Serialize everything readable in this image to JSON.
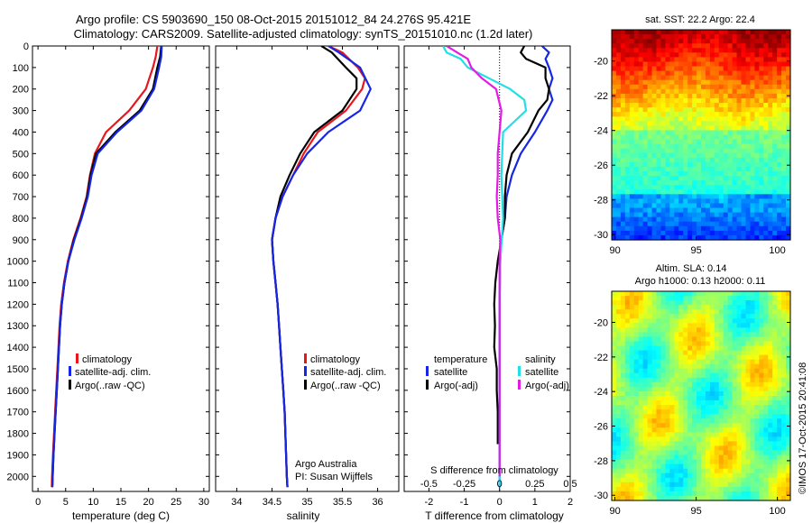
{
  "header": {
    "line1": "Argo profile: CS 5903690_150 08-Oct-2015 20151012_84 24.276S 95.421E",
    "line2": "Climatology: CARS2009. Satellite-adjusted climatology: synTS_20151010.nc (1.2d later)"
  },
  "chart_data": [
    {
      "type": "line",
      "panel": "temperature",
      "xlabel": "temperature (deg C)",
      "xlim": [
        -1,
        31
      ],
      "ylim": [
        2070,
        0
      ],
      "xticks": [
        0,
        5,
        10,
        15,
        20,
        25,
        30
      ],
      "yticks": [
        0,
        100,
        200,
        300,
        400,
        500,
        600,
        700,
        800,
        900,
        1000,
        1100,
        1200,
        1300,
        1400,
        1500,
        1600,
        1700,
        1800,
        1900,
        2000
      ],
      "legend": [
        "climatology",
        "satellite-adj. clim.",
        "Argo(..raw -QC)"
      ],
      "series": [
        {
          "name": "climatology",
          "color": "#e8171b",
          "points": [
            [
              21.6,
              0
            ],
            [
              21.3,
              50
            ],
            [
              20.8,
              100
            ],
            [
              19.5,
              200
            ],
            [
              16.5,
              300
            ],
            [
              12.3,
              400
            ],
            [
              10.3,
              500
            ],
            [
              9.4,
              600
            ],
            [
              8.8,
              700
            ],
            [
              7.7,
              800
            ],
            [
              6.4,
              900
            ],
            [
              5.4,
              1000
            ],
            [
              4.7,
              1100
            ],
            [
              4.2,
              1200
            ],
            [
              3.9,
              1300
            ],
            [
              3.7,
              1400
            ],
            [
              3.5,
              1500
            ],
            [
              3.3,
              1600
            ],
            [
              3.1,
              1700
            ],
            [
              2.9,
              1800
            ],
            [
              2.7,
              1900
            ],
            [
              2.55,
              2000
            ],
            [
              2.5,
              2050
            ]
          ]
        },
        {
          "name": "Argo(..raw -QC)",
          "color": "#000000",
          "points": [
            [
              22.3,
              0
            ],
            [
              22.1,
              50
            ],
            [
              21.6,
              100
            ],
            [
              20.8,
              200
            ],
            [
              18.4,
              300
            ],
            [
              14.0,
              400
            ],
            [
              10.5,
              500
            ],
            [
              9.5,
              600
            ],
            [
              8.9,
              700
            ],
            [
              7.8,
              800
            ],
            [
              6.5,
              900
            ],
            [
              5.5,
              1000
            ],
            [
              4.8,
              1100
            ],
            [
              4.3,
              1200
            ],
            [
              4.0,
              1300
            ],
            [
              3.8,
              1400
            ],
            [
              3.6,
              1500
            ],
            [
              3.4,
              1600
            ],
            [
              3.2,
              1700
            ],
            [
              3.0,
              1800
            ],
            [
              2.8,
              1900
            ],
            [
              2.65,
              2000
            ],
            [
              2.6,
              2050
            ]
          ]
        },
        {
          "name": "satellite-adj. clim.",
          "color": "#1526e6",
          "points": [
            [
              22.4,
              0
            ],
            [
              22.3,
              50
            ],
            [
              21.9,
              100
            ],
            [
              21.0,
              200
            ],
            [
              18.7,
              300
            ],
            [
              14.3,
              400
            ],
            [
              10.8,
              500
            ],
            [
              9.7,
              600
            ],
            [
              9.0,
              700
            ],
            [
              7.9,
              800
            ],
            [
              6.6,
              900
            ],
            [
              5.5,
              1000
            ],
            [
              4.8,
              1100
            ],
            [
              4.3,
              1200
            ],
            [
              4.0,
              1300
            ],
            [
              3.8,
              1400
            ],
            [
              3.6,
              1500
            ],
            [
              3.4,
              1600
            ],
            [
              3.2,
              1700
            ],
            [
              3.0,
              1800
            ],
            [
              2.8,
              1900
            ],
            [
              2.65,
              2000
            ],
            [
              2.6,
              2050
            ]
          ]
        }
      ]
    },
    {
      "type": "line",
      "panel": "salinity",
      "xlabel": "salinity",
      "xlim": [
        33.7,
        36.3
      ],
      "ylim": [
        2070,
        0
      ],
      "xticks": [
        34,
        34.5,
        35,
        35.5,
        36
      ],
      "legend": [
        "climatology",
        "satellite-adj. clim.",
        "Argo(..raw -QC)"
      ],
      "annotation": [
        "Argo Australia",
        "PI: Susan Wijffels"
      ],
      "series": [
        {
          "name": "climatology",
          "color": "#e8171b",
          "points": [
            [
              35.3,
              0
            ],
            [
              35.5,
              30
            ],
            [
              35.72,
              100
            ],
            [
              35.82,
              150
            ],
            [
              35.78,
              200
            ],
            [
              35.55,
              300
            ],
            [
              35.15,
              400
            ],
            [
              34.95,
              500
            ],
            [
              34.8,
              600
            ],
            [
              34.65,
              700
            ],
            [
              34.55,
              800
            ],
            [
              34.5,
              900
            ],
            [
              34.52,
              1000
            ],
            [
              34.55,
              1100
            ],
            [
              34.58,
              1200
            ],
            [
              34.6,
              1300
            ],
            [
              34.62,
              1400
            ],
            [
              34.64,
              1500
            ],
            [
              34.66,
              1600
            ],
            [
              34.68,
              1700
            ],
            [
              34.69,
              1800
            ],
            [
              34.7,
              1900
            ],
            [
              34.71,
              2000
            ],
            [
              34.72,
              2050
            ]
          ]
        },
        {
          "name": "Argo(..raw -QC)",
          "color": "#000000",
          "points": [
            [
              35.2,
              0
            ],
            [
              35.35,
              30
            ],
            [
              35.55,
              100
            ],
            [
              35.7,
              150
            ],
            [
              35.7,
              200
            ],
            [
              35.5,
              300
            ],
            [
              35.1,
              400
            ],
            [
              34.9,
              500
            ],
            [
              34.75,
              600
            ],
            [
              34.62,
              700
            ],
            [
              34.55,
              800
            ],
            [
              34.5,
              900
            ],
            [
              34.52,
              1000
            ],
            [
              34.55,
              1100
            ],
            [
              34.58,
              1200
            ],
            [
              34.6,
              1300
            ],
            [
              34.62,
              1400
            ],
            [
              34.64,
              1500
            ],
            [
              34.66,
              1600
            ],
            [
              34.68,
              1700
            ],
            [
              34.69,
              1800
            ],
            [
              34.7,
              1900
            ],
            [
              34.71,
              2000
            ],
            [
              34.72,
              2050
            ]
          ]
        },
        {
          "name": "satellite-adj. clim.",
          "color": "#1526e6",
          "points": [
            [
              35.3,
              0
            ],
            [
              35.45,
              30
            ],
            [
              35.75,
              100
            ],
            [
              35.9,
              200
            ],
            [
              35.75,
              300
            ],
            [
              35.3,
              400
            ],
            [
              35.0,
              500
            ],
            [
              34.8,
              600
            ],
            [
              34.65,
              700
            ],
            [
              34.55,
              800
            ],
            [
              34.5,
              900
            ],
            [
              34.52,
              1000
            ],
            [
              34.55,
              1100
            ],
            [
              34.58,
              1200
            ],
            [
              34.6,
              1300
            ],
            [
              34.62,
              1400
            ],
            [
              34.64,
              1500
            ],
            [
              34.66,
              1600
            ],
            [
              34.68,
              1700
            ],
            [
              34.69,
              1800
            ],
            [
              34.7,
              1900
            ],
            [
              34.71,
              2000
            ],
            [
              34.72,
              2050
            ]
          ]
        }
      ]
    },
    {
      "type": "line",
      "panel": "difference",
      "xlabel": "T difference from climatology",
      "xlabel_top": "S difference from climatology",
      "xlim": [
        -2.7,
        2.0
      ],
      "ylim": [
        2070,
        0
      ],
      "xticks_T": [
        -2,
        -1,
        0,
        1,
        2
      ],
      "xticks_S": [
        "-0.5",
        "-0.25",
        "0",
        "0.25",
        "0.5"
      ],
      "legend": {
        "temperature_title": "temperature",
        "salinity_title": "salinity",
        "satellite": "satellite",
        "argo": "Argo(-adj)"
      },
      "series": [
        {
          "name": "temperature satellite",
          "color": "#1526e6",
          "points": [
            [
              1.2,
              0
            ],
            [
              1.4,
              30
            ],
            [
              1.3,
              60
            ],
            [
              1.4,
              100
            ],
            [
              1.5,
              150
            ],
            [
              1.4,
              200
            ],
            [
              1.5,
              250
            ],
            [
              1.35,
              300
            ],
            [
              1.0,
              400
            ],
            [
              0.6,
              500
            ],
            [
              0.35,
              600
            ],
            [
              0.2,
              700
            ],
            [
              0.15,
              800
            ],
            [
              0.05,
              900
            ],
            [
              0.02,
              1000
            ],
            [
              0,
              1200
            ],
            [
              0,
              1500
            ],
            [
              0,
              2050
            ]
          ]
        },
        {
          "name": "temperature Argo(-adj)",
          "color": "#000000",
          "points": [
            [
              0.7,
              0
            ],
            [
              0.6,
              30
            ],
            [
              0.75,
              60
            ],
            [
              1.3,
              100
            ],
            [
              1.3,
              150
            ],
            [
              1.4,
              200
            ],
            [
              1.35,
              250
            ],
            [
              1.1,
              300
            ],
            [
              0.8,
              400
            ],
            [
              0.35,
              500
            ],
            [
              0.2,
              600
            ],
            [
              0.15,
              700
            ],
            [
              0.15,
              800
            ],
            [
              0.05,
              900
            ],
            [
              -0.05,
              1000
            ],
            [
              -0.12,
              1100
            ],
            [
              -0.15,
              1200
            ],
            [
              -0.13,
              1300
            ],
            [
              -0.15,
              1400
            ],
            [
              -0.08,
              1500
            ],
            [
              -0.08,
              1600
            ],
            [
              -0.05,
              1700
            ],
            [
              -0.05,
              1850
            ]
          ]
        },
        {
          "name": "salinity satellite",
          "color": "#22dfe6",
          "points": [
            [
              -1.6,
              0
            ],
            [
              -1.5,
              30
            ],
            [
              -1.1,
              60
            ],
            [
              -0.9,
              100
            ],
            [
              -0.3,
              150
            ],
            [
              0.3,
              200
            ],
            [
              0.7,
              250
            ],
            [
              0.75,
              300
            ],
            [
              0.1,
              400
            ],
            [
              0.05,
              600
            ],
            [
              0.1,
              800
            ],
            [
              0.02,
              1000
            ],
            [
              0,
              1200
            ],
            [
              0,
              2050
            ]
          ]
        },
        {
          "name": "salinity Argo(-adj)",
          "color": "#e61ae6",
          "points": [
            [
              -1.5,
              0
            ],
            [
              -1.2,
              30
            ],
            [
              -0.9,
              60
            ],
            [
              -0.8,
              100
            ],
            [
              -0.5,
              150
            ],
            [
              -0.1,
              200
            ],
            [
              0.05,
              300
            ],
            [
              0.0,
              400
            ],
            [
              -0.05,
              500
            ],
            [
              -0.05,
              600
            ],
            [
              -0.08,
              700
            ],
            [
              -0.05,
              800
            ],
            [
              0.02,
              900
            ],
            [
              0,
              1000
            ],
            [
              0,
              1400
            ],
            [
              0,
              2000
            ]
          ]
        }
      ]
    }
  ],
  "maps": {
    "sst": {
      "title": "sat. SST: 22.2 Argo: 22.4",
      "xticks": [
        "90",
        "95",
        "100"
      ],
      "yticks": [
        "-20",
        "-22",
        "-24",
        "-26",
        "-28",
        "-30"
      ]
    },
    "sla": {
      "title_line1": "Altim. SLA: 0.14",
      "title_line2": "Argo h1000: 0.13 h2000: 0.11",
      "xticks": [
        "90",
        "95",
        "100"
      ],
      "yticks": [
        "-20",
        "-22",
        "-24",
        "-26",
        "-28",
        "-30"
      ]
    }
  },
  "credit": "©IMOS 17-Oct-2015 20:41:08"
}
